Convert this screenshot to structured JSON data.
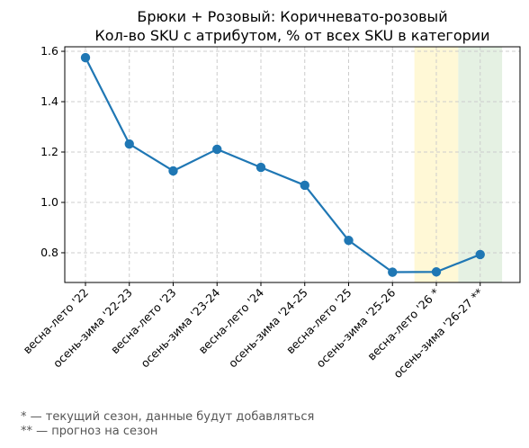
{
  "chart_data": {
    "type": "line",
    "title_line1": "Брюки + Розовый: Коричневато-розовый",
    "title_line2": "Кол-во SKU с атрибутом, % от всех SKU в категории",
    "categories": [
      "весна-лето '22",
      "осень-зима '22-23",
      "весна-лето '23",
      "осень-зима '23-24",
      "весна-лето '24",
      "осень-зима '24-25",
      "весна-лето '25",
      "осень-зима '25-26",
      "весна-лето '26 *",
      "осень-зима '26-27 **"
    ],
    "series": [
      {
        "values": [
          1.575,
          1.232,
          1.125,
          1.211,
          1.139,
          1.068,
          0.849,
          0.723,
          0.724,
          0.793
        ]
      }
    ],
    "ylim": [
      0.682,
      1.618
    ],
    "yticks": [
      0.8,
      1.0,
      1.2,
      1.4,
      1.6
    ],
    "ytick_labels": [
      "0.8",
      "1.0",
      "1.2",
      "1.4",
      "1.6"
    ],
    "grid": true,
    "highlight_bands": [
      {
        "category": "весна-лето '26 *",
        "color": "#fff8d6"
      },
      {
        "category": "осень-зима '26-27 **",
        "color": "#e5f1e3"
      }
    ],
    "line_color": "#1f77b4",
    "footnotes": [
      "* — текущий сезон, данные будут добавляться",
      "** — прогноз на сезон"
    ]
  }
}
